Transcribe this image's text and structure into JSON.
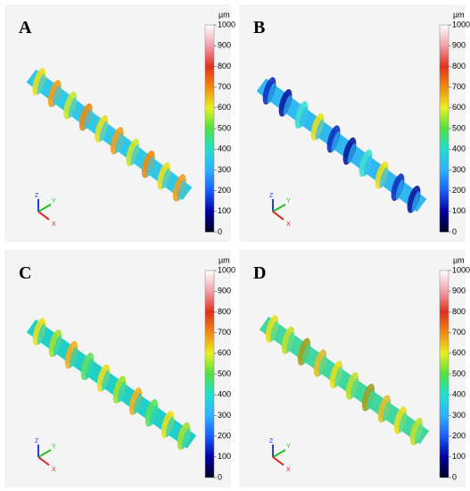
{
  "panels": [
    {
      "label": "A",
      "unit": "µm",
      "ticks": [
        0,
        100,
        200,
        300,
        400,
        500,
        600,
        700,
        800,
        900,
        1000
      ],
      "axes": {
        "z": "Z",
        "y": "Y",
        "x": "X"
      }
    },
    {
      "label": "B",
      "unit": "µm",
      "ticks": [
        0,
        100,
        200,
        300,
        400,
        500,
        600,
        700,
        800,
        900,
        1000
      ],
      "axes": {
        "z": "Z",
        "y": "Y",
        "x": "X"
      }
    },
    {
      "label": "C",
      "unit": "µm",
      "ticks": [
        0,
        100,
        200,
        300,
        400,
        500,
        600,
        700,
        800,
        900,
        1000
      ],
      "axes": {
        "z": "Z",
        "y": "Y",
        "x": "X"
      }
    },
    {
      "label": "D",
      "unit": "µm",
      "ticks": [
        0,
        100,
        200,
        300,
        400,
        500,
        600,
        700,
        800,
        900,
        1000
      ],
      "axes": {
        "z": "Z",
        "y": "Y",
        "x": "X"
      }
    }
  ]
}
